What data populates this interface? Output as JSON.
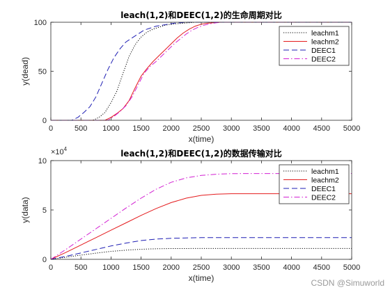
{
  "colors": {
    "leachm1": "#000000",
    "leachm2": "#e41a1c",
    "DEEC1": "#1f1fb4",
    "DEEC2": "#d21ed2"
  },
  "chart_data": [
    {
      "type": "line",
      "title": "leach(1,2)和DEEC(1,2)的生命周期对比",
      "xlabel": "x(time)",
      "ylabel": "y(dead)",
      "xlim": [
        0,
        5000
      ],
      "ylim": [
        0,
        100
      ],
      "xticks": [
        "0",
        "500",
        "1000",
        "1500",
        "2000",
        "2500",
        "3000",
        "3500",
        "4000",
        "4500",
        "5000"
      ],
      "yticks": [
        "0",
        "50",
        "100"
      ],
      "exponent_label": "",
      "legend": "top-right",
      "series": [
        {
          "name": "leachm1",
          "style": "dotted",
          "x": [
            0,
            700,
            800,
            900,
            1000,
            1100,
            1200,
            1300,
            1400,
            1500,
            1600,
            1700,
            1800,
            1900,
            2000,
            2100,
            2200,
            2300,
            2400,
            2500,
            2600,
            2700,
            5000
          ],
          "y": [
            0,
            0,
            3,
            8,
            18,
            30,
            48,
            65,
            77,
            85,
            90,
            93,
            95,
            97,
            98,
            98.5,
            99,
            99.5,
            100,
            100,
            100,
            100,
            100
          ]
        },
        {
          "name": "leachm2",
          "style": "solid",
          "x": [
            0,
            900,
            1000,
            1100,
            1200,
            1300,
            1400,
            1500,
            1600,
            1700,
            1800,
            1900,
            2000,
            2100,
            2200,
            2300,
            2400,
            2500,
            2600,
            2700,
            2800,
            2900,
            3000,
            5000
          ],
          "y": [
            0,
            0,
            3,
            7,
            12,
            20,
            33,
            45,
            53,
            60,
            66,
            72,
            78,
            84,
            89,
            93,
            96,
            98,
            99,
            99.5,
            100,
            100,
            100,
            100
          ]
        },
        {
          "name": "DEEC1",
          "style": "dashed",
          "x": [
            0,
            350,
            450,
            550,
            650,
            750,
            850,
            950,
            1050,
            1150,
            1250,
            1350,
            1450,
            1550,
            1650,
            1750,
            1850,
            1950,
            2050,
            2150,
            2250,
            2350,
            5000
          ],
          "y": [
            0,
            0,
            3,
            8,
            14,
            24,
            38,
            52,
            64,
            73,
            80,
            84,
            88,
            92,
            94,
            96,
            97,
            98,
            99,
            99.5,
            100,
            100,
            100
          ]
        },
        {
          "name": "DEEC2",
          "style": "dashdot",
          "x": [
            0,
            950,
            1050,
            1150,
            1250,
            1350,
            1450,
            1550,
            1650,
            1750,
            1850,
            1950,
            2050,
            2150,
            2250,
            2350,
            2450,
            2550,
            2650,
            2750,
            2850,
            2950,
            3050,
            5000
          ],
          "y": [
            0,
            0,
            4,
            9,
            15,
            24,
            36,
            48,
            55,
            60,
            66,
            72,
            78,
            83,
            88,
            92,
            95,
            97,
            98.5,
            99.5,
            100,
            100,
            100,
            100
          ]
        }
      ]
    },
    {
      "type": "line",
      "title": "leach(1,2)和DEEC(1,2)的数据传输对比",
      "xlabel": "x(time)",
      "ylabel": "y(data)",
      "xlim": [
        0,
        5000
      ],
      "ylim": [
        0,
        100000
      ],
      "xticks": [
        "0",
        "500",
        "1000",
        "1500",
        "2000",
        "2500",
        "3000",
        "3500",
        "4000",
        "4500",
        "5000"
      ],
      "yticks": [
        "0",
        "5",
        "10"
      ],
      "exponent_label": "×10",
      "exponent_power": "4",
      "legend": "top-right",
      "series": [
        {
          "name": "leachm1",
          "style": "dotted",
          "x": [
            0,
            250,
            500,
            750,
            1000,
            1250,
            1500,
            1750,
            2000,
            2500,
            3000,
            5000
          ],
          "y": [
            0,
            2100,
            4300,
            6300,
            8000,
            9300,
            10200,
            10700,
            10900,
            11000,
            11000,
            11000
          ]
        },
        {
          "name": "leachm2",
          "style": "solid",
          "x": [
            0,
            250,
            500,
            750,
            1000,
            1250,
            1500,
            1750,
            2000,
            2250,
            2500,
            2750,
            3000,
            5000
          ],
          "y": [
            0,
            7000,
            14500,
            22000,
            29500,
            37000,
            44500,
            51500,
            57500,
            62000,
            64800,
            66000,
            66500,
            66500
          ]
        },
        {
          "name": "DEEC1",
          "style": "dashed",
          "x": [
            0,
            250,
            500,
            750,
            1000,
            1250,
            1500,
            1750,
            2000,
            2250,
            2500,
            3000,
            5000
          ],
          "y": [
            0,
            3000,
            6500,
            10000,
            13500,
            16500,
            19000,
            20500,
            21300,
            21700,
            22000,
            22000,
            22000
          ]
        },
        {
          "name": "DEEC2",
          "style": "dashdot",
          "x": [
            0,
            250,
            500,
            750,
            1000,
            1250,
            1500,
            1750,
            2000,
            2250,
            2500,
            2750,
            3000,
            5000
          ],
          "y": [
            0,
            10000,
            20500,
            31000,
            41500,
            52000,
            62000,
            71000,
            78000,
            82500,
            85000,
            86200,
            86800,
            87000
          ]
        }
      ]
    }
  ],
  "watermark": "CSDN @Simuworld"
}
